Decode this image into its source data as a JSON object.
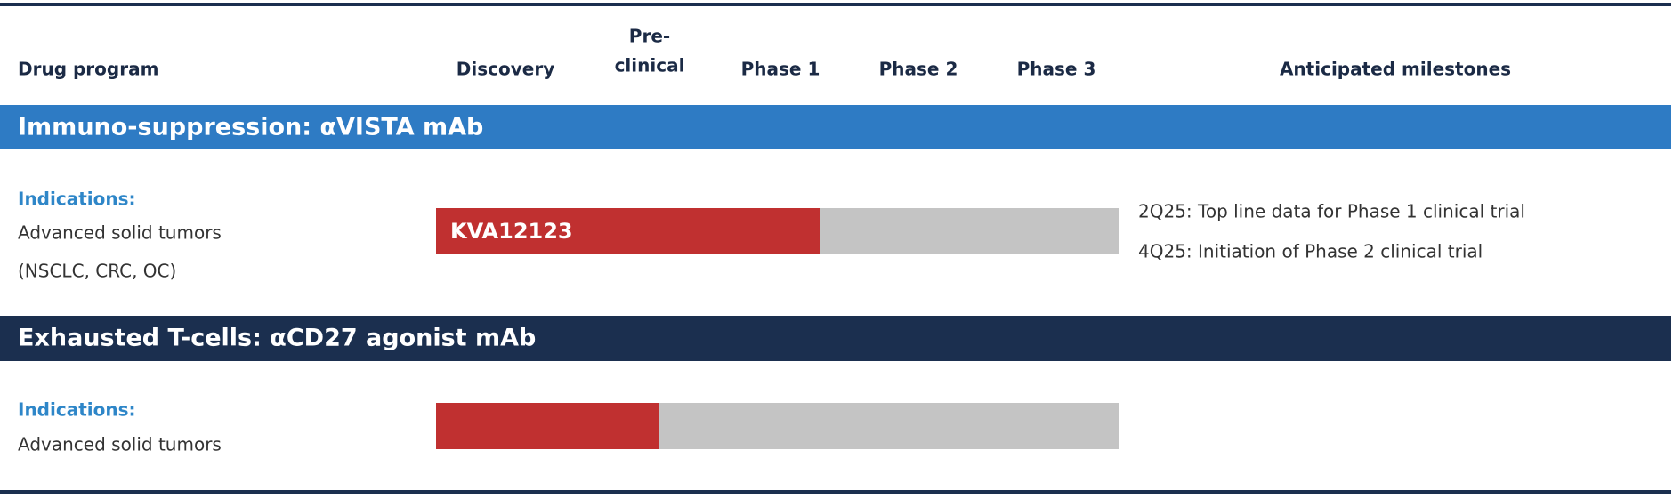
{
  "header": {
    "columns": [
      "Drug program",
      "Discovery",
      "Pre-",
      "clinical",
      "Phase 1",
      "Phase 2",
      "Phase 3",
      "Anticipated milestones"
    ]
  },
  "programs": [
    {
      "title": "Immuno-suppression:  αVISTA mAb",
      "indications_label": "Indications:",
      "indications": [
        "Advanced solid tumors",
        "(NSCLC, CRC, OC)"
      ],
      "drug": "KVA12123",
      "milestones": [
        "2Q25: Top line data for Phase 1 clinical trial",
        "4Q25: Initiation of Phase 2 clinical trial"
      ]
    },
    {
      "title": "Exhausted T-cells:  αCD27 agonist mAb",
      "indications_label": "Indications:",
      "indications": [
        "Advanced solid tumors"
      ]
    }
  ]
}
